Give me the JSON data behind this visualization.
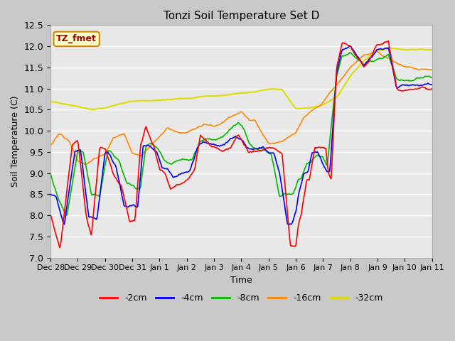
{
  "title": "Tonzi Soil Temperature Set D",
  "xlabel": "Time",
  "ylabel": "Soil Temperature (C)",
  "ylim": [
    7.0,
    12.5
  ],
  "xlim": [
    0,
    14
  ],
  "annotation_text": "TZ_fmet",
  "annotation_color": "#aa0000",
  "annotation_bg": "#ffffcc",
  "annotation_border": "#cc8800",
  "fig_bg": "#c8c8c8",
  "plot_bg": "#e8e8e8",
  "series_colors": {
    "-2cm": "#ff0000",
    "-4cm": "#0000ff",
    "-8cm": "#00bb00",
    "-16cm": "#ff8800",
    "-32cm": "#dddd00"
  },
  "xtick_labels": [
    "Dec 28",
    "Dec 29",
    "Dec 30",
    "Dec 31",
    "Jan 1",
    "Jan 2",
    "Jan 3",
    "Jan 4",
    "Jan 5",
    "Jan 6",
    "Jan 7",
    "Jan 8",
    "Jan 9",
    "Jan 10",
    "Jan 11"
  ],
  "ytick_vals": [
    7.0,
    7.5,
    8.0,
    8.5,
    9.0,
    9.5,
    10.0,
    10.5,
    11.0,
    11.5,
    12.0,
    12.5
  ],
  "figsize": [
    6.4,
    4.8
  ],
  "dpi": 100
}
